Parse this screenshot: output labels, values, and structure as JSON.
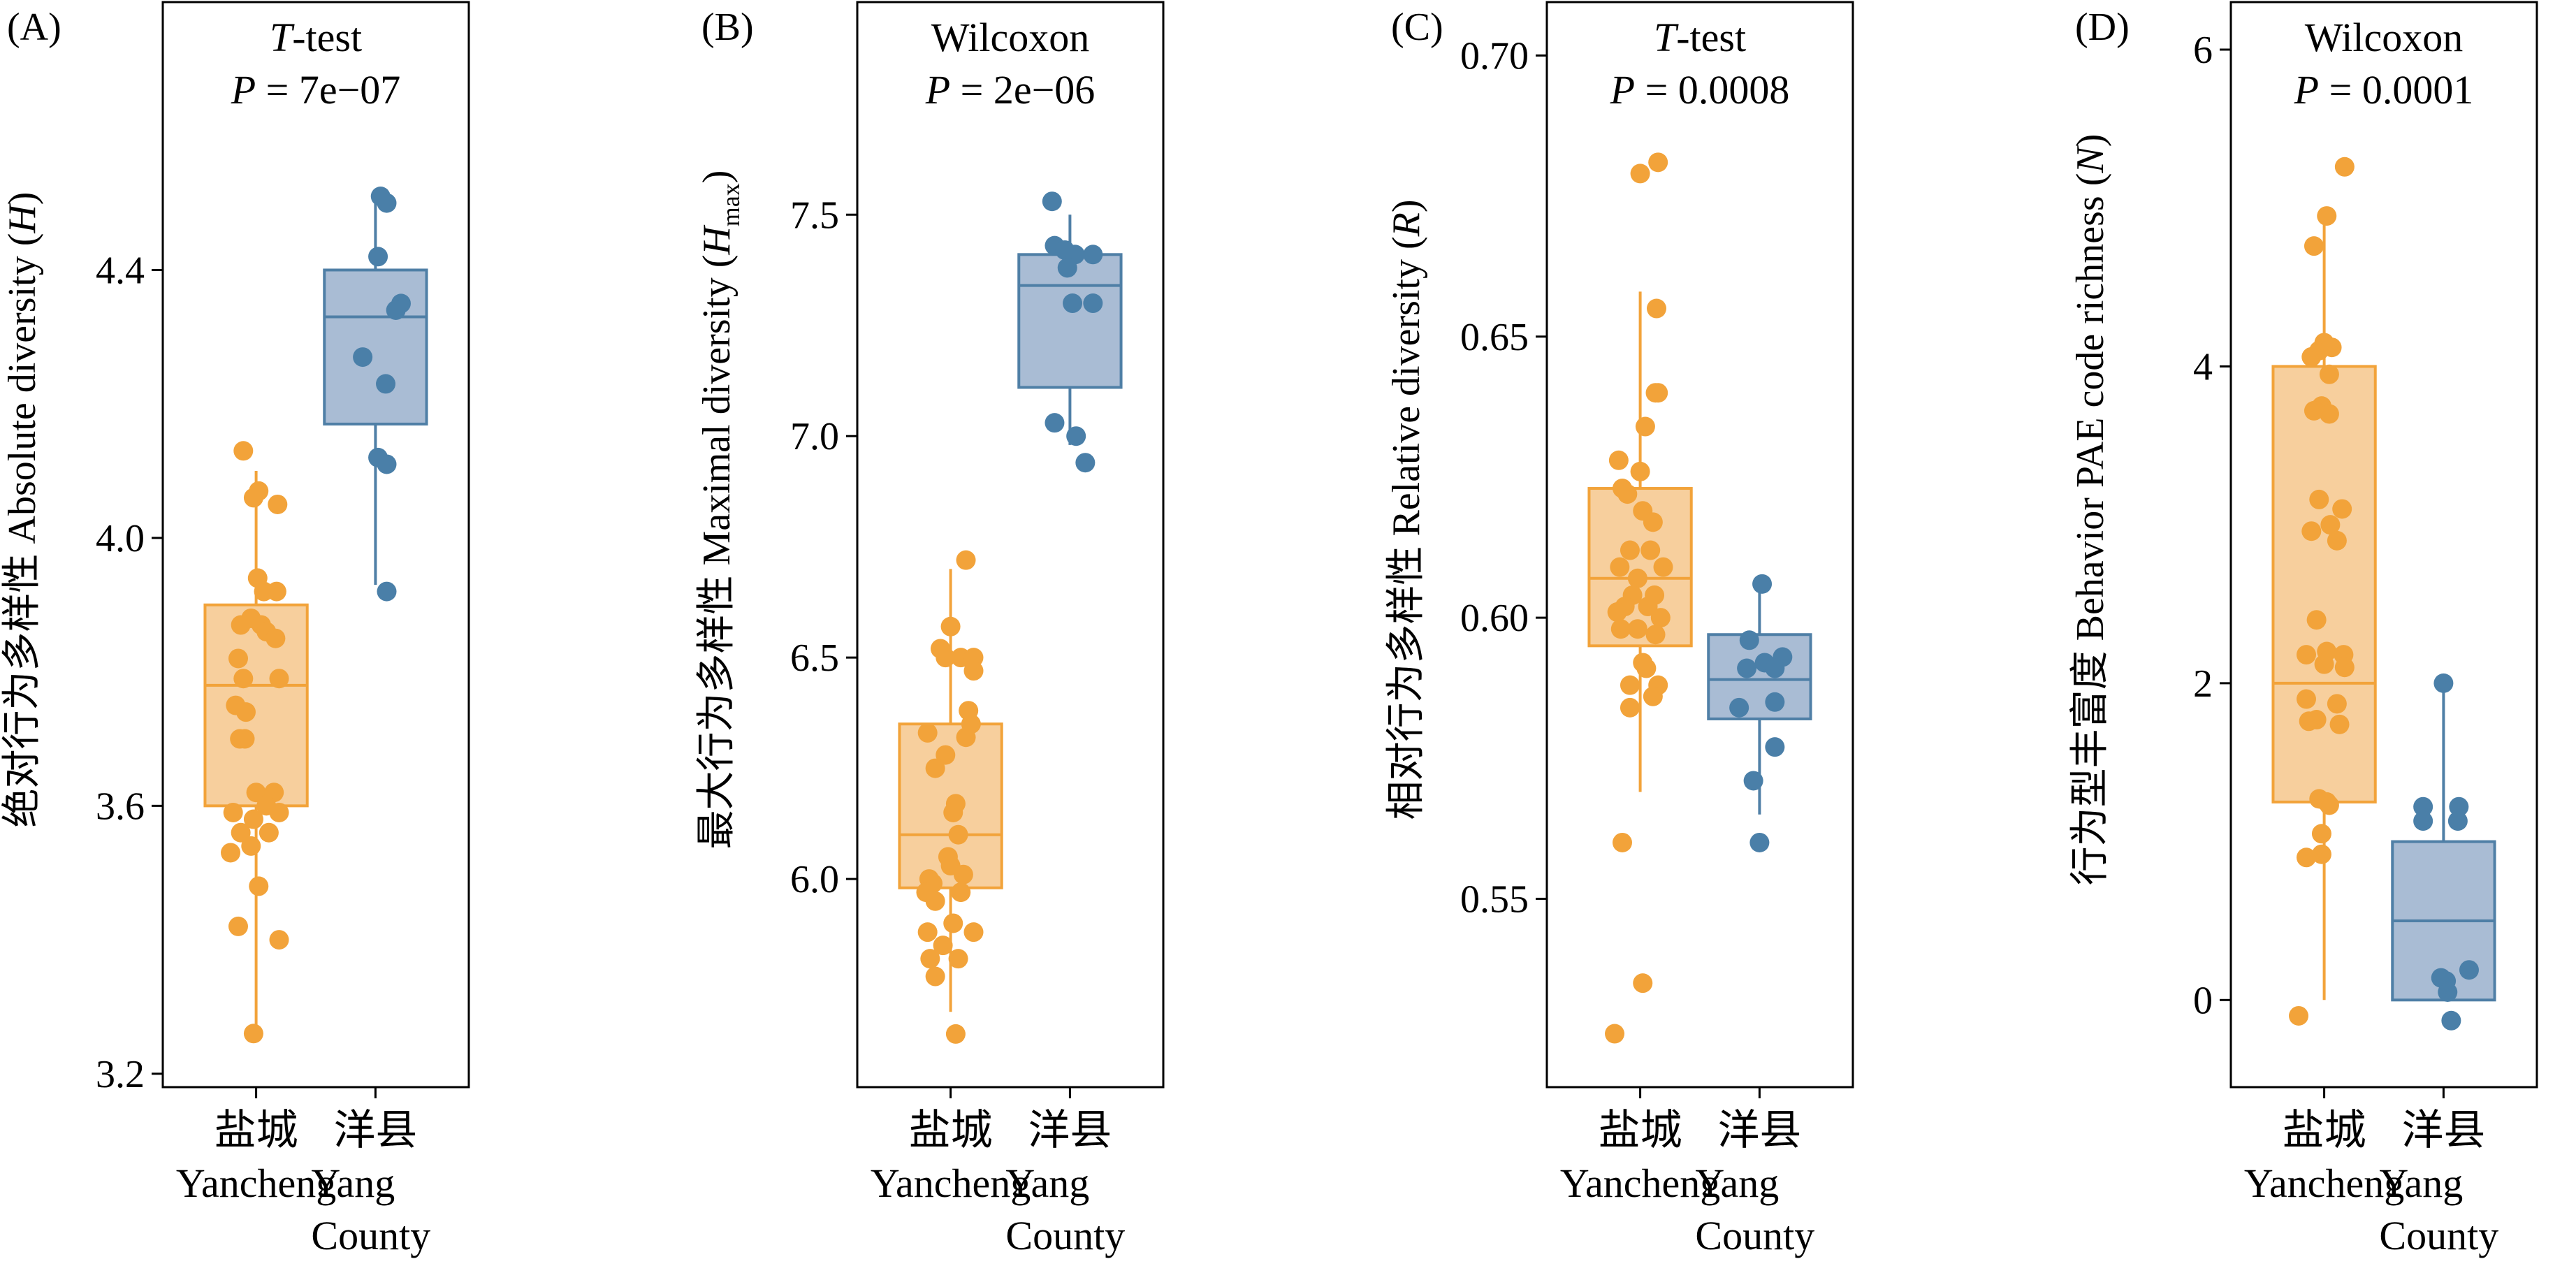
{
  "colors": {
    "yancheng_fill": "#f7cf9d",
    "yancheng_edge": "#f2a33a",
    "yancheng_point": "#f2a33a",
    "yang_fill": "#a9bcd4",
    "yang_edge": "#4f7fa6",
    "yang_point": "#4a7fa8"
  },
  "chart_data": [
    {
      "type": "box",
      "panel_label": "(A)",
      "test_name": "T-test",
      "p_text": "P = 7e−07",
      "ylabel": "绝对行为多样性 Absolute diversity (H)",
      "ylabel_parts": [
        "绝对行为多样性 Absolute diversity (",
        "H",
        ")"
      ],
      "ylabel_style": "italic",
      "ylim": [
        3.18,
        4.8
      ],
      "yticks": [
        3.2,
        3.6,
        4.0,
        4.4
      ],
      "ytick_labels": [
        "3.2",
        "3.6",
        "4.0",
        "4.4"
      ],
      "categories": [
        {
          "cn": "盐城",
          "en": [
            "Yancheng"
          ]
        },
        {
          "cn": "洋县",
          "en": [
            "Yang",
            "County"
          ]
        }
      ],
      "groups": [
        {
          "box": {
            "q1": 3.6,
            "median": 3.78,
            "q3": 3.9,
            "whisker_low": 3.26,
            "whisker_high": 4.1
          },
          "points": [
            {
              "j": -0.25,
              "y": 4.13
            },
            {
              "j": 0.05,
              "y": 4.07
            },
            {
              "j": -0.05,
              "y": 4.06
            },
            {
              "j": 0.42,
              "y": 4.05
            },
            {
              "j": 0.03,
              "y": 3.94
            },
            {
              "j": 0.15,
              "y": 3.92
            },
            {
              "j": 0.4,
              "y": 3.92
            },
            {
              "j": -0.1,
              "y": 3.88
            },
            {
              "j": -0.3,
              "y": 3.87
            },
            {
              "j": 0.1,
              "y": 3.87
            },
            {
              "j": 0.2,
              "y": 3.86
            },
            {
              "j": 0.38,
              "y": 3.85
            },
            {
              "j": -0.35,
              "y": 3.82
            },
            {
              "j": -0.25,
              "y": 3.79
            },
            {
              "j": 0.45,
              "y": 3.79
            },
            {
              "j": -0.4,
              "y": 3.75
            },
            {
              "j": -0.2,
              "y": 3.74
            },
            {
              "j": -0.32,
              "y": 3.7
            },
            {
              "j": -0.22,
              "y": 3.7
            },
            {
              "j": 0.0,
              "y": 3.62
            },
            {
              "j": 0.35,
              "y": 3.62
            },
            {
              "j": 0.2,
              "y": 3.6
            },
            {
              "j": -0.45,
              "y": 3.59
            },
            {
              "j": 0.45,
              "y": 3.59
            },
            {
              "j": -0.05,
              "y": 3.58
            },
            {
              "j": 0.25,
              "y": 3.56
            },
            {
              "j": -0.3,
              "y": 3.56
            },
            {
              "j": -0.5,
              "y": 3.53
            },
            {
              "j": -0.1,
              "y": 3.54
            },
            {
              "j": 0.05,
              "y": 3.48
            },
            {
              "j": -0.35,
              "y": 3.42
            },
            {
              "j": 0.45,
              "y": 3.4
            },
            {
              "j": -0.05,
              "y": 3.26
            }
          ]
        },
        {
          "box": {
            "q1": 4.17,
            "median": 4.33,
            "q3": 4.4,
            "whisker_low": 3.93,
            "whisker_high": 4.5
          },
          "points": [
            {
              "j": 0.1,
              "y": 4.51
            },
            {
              "j": 0.22,
              "y": 4.5
            },
            {
              "j": 0.05,
              "y": 4.42
            },
            {
              "j": 0.5,
              "y": 4.35
            },
            {
              "j": 0.4,
              "y": 4.34
            },
            {
              "j": -0.25,
              "y": 4.27
            },
            {
              "j": 0.2,
              "y": 4.23
            },
            {
              "j": 0.05,
              "y": 4.12
            },
            {
              "j": 0.22,
              "y": 4.11
            },
            {
              "j": 0.22,
              "y": 3.92
            }
          ]
        }
      ]
    },
    {
      "type": "box",
      "panel_label": "(B)",
      "test_name": "Wilcoxon",
      "p_text": "P = 2e−06",
      "ylabel": "最大行为多样性 Maximal diversity (Hmax)",
      "ylabel_parts": [
        "最大行为多样性 Maximal diversity (",
        "H",
        ")"
      ],
      "ylabel_sub": "max",
      "ylabel_style": "italic",
      "ylim": [
        5.53,
        7.98
      ],
      "yticks": [
        6.0,
        6.5,
        7.0,
        7.5
      ],
      "ytick_labels": [
        "6.0",
        "6.5",
        "7.0",
        "7.5"
      ],
      "categories": [
        {
          "cn": "盐城",
          "en": [
            "Yancheng"
          ]
        },
        {
          "cn": "洋县",
          "en": [
            "Yang",
            "County"
          ]
        }
      ],
      "groups": [
        {
          "box": {
            "q1": 5.98,
            "median": 6.1,
            "q3": 6.35,
            "whisker_low": 5.7,
            "whisker_high": 6.7
          },
          "points": [
            {
              "j": 0.3,
              "y": 6.72
            },
            {
              "j": 0.0,
              "y": 6.57
            },
            {
              "j": -0.2,
              "y": 6.52
            },
            {
              "j": 0.2,
              "y": 6.5
            },
            {
              "j": -0.1,
              "y": 6.5
            },
            {
              "j": 0.45,
              "y": 6.5
            },
            {
              "j": 0.45,
              "y": 6.47
            },
            {
              "j": 0.35,
              "y": 6.38
            },
            {
              "j": 0.4,
              "y": 6.35
            },
            {
              "j": -0.45,
              "y": 6.33
            },
            {
              "j": 0.3,
              "y": 6.32
            },
            {
              "j": -0.1,
              "y": 6.28
            },
            {
              "j": -0.3,
              "y": 6.25
            },
            {
              "j": 0.1,
              "y": 6.17
            },
            {
              "j": 0.05,
              "y": 6.15
            },
            {
              "j": 0.15,
              "y": 6.1
            },
            {
              "j": -0.05,
              "y": 6.05
            },
            {
              "j": 0.0,
              "y": 6.03
            },
            {
              "j": 0.25,
              "y": 6.01
            },
            {
              "j": -0.42,
              "y": 6.0
            },
            {
              "j": -0.35,
              "y": 5.99
            },
            {
              "j": -0.48,
              "y": 5.97
            },
            {
              "j": 0.2,
              "y": 5.97
            },
            {
              "j": -0.3,
              "y": 5.95
            },
            {
              "j": 0.05,
              "y": 5.9
            },
            {
              "j": -0.45,
              "y": 5.88
            },
            {
              "j": 0.45,
              "y": 5.88
            },
            {
              "j": -0.15,
              "y": 5.85
            },
            {
              "j": -0.4,
              "y": 5.82
            },
            {
              "j": 0.15,
              "y": 5.82
            },
            {
              "j": -0.3,
              "y": 5.78
            },
            {
              "j": 0.1,
              "y": 5.65
            }
          ]
        },
        {
          "box": {
            "q1": 7.11,
            "median": 7.34,
            "q3": 7.41,
            "whisker_low": 6.98,
            "whisker_high": 7.5
          },
          "points": [
            {
              "j": -0.35,
              "y": 7.53
            },
            {
              "j": -0.3,
              "y": 7.43
            },
            {
              "j": -0.1,
              "y": 7.42
            },
            {
              "j": 0.1,
              "y": 7.41
            },
            {
              "j": 0.45,
              "y": 7.41
            },
            {
              "j": -0.05,
              "y": 7.38
            },
            {
              "j": 0.05,
              "y": 7.3
            },
            {
              "j": 0.45,
              "y": 7.3
            },
            {
              "j": -0.3,
              "y": 7.03
            },
            {
              "j": 0.12,
              "y": 7.0
            },
            {
              "j": 0.3,
              "y": 6.94
            }
          ]
        }
      ]
    },
    {
      "type": "box",
      "panel_label": "(C)",
      "test_name": "T-test",
      "p_text": "P = 0.0008",
      "ylabel": "相对行为多样性 Relative diversity (R)",
      "ylabel_parts": [
        "相对行为多样性 Relative diversity (",
        "R",
        ")"
      ],
      "ylabel_style": "italic",
      "ylim": [
        0.5165,
        0.7095
      ],
      "yticks": [
        0.55,
        0.6,
        0.65,
        0.7
      ],
      "ytick_labels": [
        "0.55",
        "0.60",
        "0.65",
        "0.70"
      ],
      "categories": [
        {
          "cn": "盐城",
          "en": [
            "Yancheng"
          ]
        },
        {
          "cn": "洋县",
          "en": [
            "Yang",
            "County"
          ]
        }
      ],
      "groups": [
        {
          "box": {
            "q1": 0.595,
            "median": 0.607,
            "q3": 0.623,
            "whisker_low": 0.569,
            "whisker_high": 0.658
          },
          "points": [
            {
              "j": 0.35,
              "y": 0.681
            },
            {
              "j": 0.0,
              "y": 0.679
            },
            {
              "j": 0.32,
              "y": 0.655
            },
            {
              "j": 0.3,
              "y": 0.64
            },
            {
              "j": 0.35,
              "y": 0.64
            },
            {
              "j": 0.1,
              "y": 0.634
            },
            {
              "j": -0.42,
              "y": 0.628
            },
            {
              "j": 0.0,
              "y": 0.626
            },
            {
              "j": -0.35,
              "y": 0.623
            },
            {
              "j": -0.25,
              "y": 0.622
            },
            {
              "j": 0.05,
              "y": 0.619
            },
            {
              "j": 0.25,
              "y": 0.617
            },
            {
              "j": -0.2,
              "y": 0.612
            },
            {
              "j": 0.2,
              "y": 0.612
            },
            {
              "j": -0.4,
              "y": 0.609
            },
            {
              "j": 0.45,
              "y": 0.609
            },
            {
              "j": -0.05,
              "y": 0.607
            },
            {
              "j": -0.15,
              "y": 0.604
            },
            {
              "j": 0.28,
              "y": 0.604
            },
            {
              "j": -0.3,
              "y": 0.602
            },
            {
              "j": 0.15,
              "y": 0.602
            },
            {
              "j": -0.45,
              "y": 0.601
            },
            {
              "j": 0.4,
              "y": 0.6
            },
            {
              "j": -0.38,
              "y": 0.598
            },
            {
              "j": -0.05,
              "y": 0.598
            },
            {
              "j": 0.3,
              "y": 0.597
            },
            {
              "j": 0.05,
              "y": 0.592
            },
            {
              "j": 0.12,
              "y": 0.591
            },
            {
              "j": -0.2,
              "y": 0.588
            },
            {
              "j": 0.35,
              "y": 0.588
            },
            {
              "j": 0.25,
              "y": 0.586
            },
            {
              "j": -0.2,
              "y": 0.584
            },
            {
              "j": -0.35,
              "y": 0.56
            },
            {
              "j": 0.05,
              "y": 0.535
            },
            {
              "j": -0.5,
              "y": 0.526
            }
          ]
        },
        {
          "box": {
            "q1": 0.582,
            "median": 0.589,
            "q3": 0.597,
            "whisker_low": 0.565,
            "whisker_high": 0.607
          },
          "points": [
            {
              "j": 0.05,
              "y": 0.606
            },
            {
              "j": -0.2,
              "y": 0.596
            },
            {
              "j": 0.1,
              "y": 0.592
            },
            {
              "j": 0.45,
              "y": 0.593
            },
            {
              "j": -0.25,
              "y": 0.591
            },
            {
              "j": 0.3,
              "y": 0.591
            },
            {
              "j": -0.4,
              "y": 0.584
            },
            {
              "j": 0.3,
              "y": 0.585
            },
            {
              "j": 0.3,
              "y": 0.577
            },
            {
              "j": -0.12,
              "y": 0.571
            },
            {
              "j": 0.0,
              "y": 0.56
            }
          ]
        }
      ]
    },
    {
      "type": "box",
      "panel_label": "(D)",
      "test_name": "Wilcoxon",
      "p_text": "P = 0.0001",
      "ylabel": "行为型丰富度 Behavior PAE code richness (N)",
      "ylabel_parts": [
        "行为型丰富度 Behavior PAE code richness (",
        "N",
        ")"
      ],
      "ylabel_style": "italic",
      "ylim": [
        -0.55,
        6.3
      ],
      "yticks": [
        0,
        2,
        4,
        6
      ],
      "ytick_labels": [
        "0",
        "2",
        "4",
        "6"
      ],
      "categories": [
        {
          "cn": "盐城",
          "en": [
            "Yancheng"
          ]
        },
        {
          "cn": "洋县",
          "en": [
            "Yang",
            "County"
          ]
        }
      ],
      "groups": [
        {
          "box": {
            "q1": 1.25,
            "median": 2.0,
            "q3": 4.0,
            "whisker_low": 0.0,
            "whisker_high": 5.0
          },
          "points": [
            {
              "j": 0.4,
              "y": 5.26
            },
            {
              "j": 0.05,
              "y": 4.95
            },
            {
              "j": -0.2,
              "y": 4.76
            },
            {
              "j": 0.0,
              "y": 4.15
            },
            {
              "j": 0.15,
              "y": 4.12
            },
            {
              "j": -0.25,
              "y": 4.06
            },
            {
              "j": -0.1,
              "y": 4.1
            },
            {
              "j": 0.1,
              "y": 3.95
            },
            {
              "j": -0.05,
              "y": 3.75
            },
            {
              "j": -0.2,
              "y": 3.72
            },
            {
              "j": 0.1,
              "y": 3.7
            },
            {
              "j": -0.1,
              "y": 3.16
            },
            {
              "j": 0.35,
              "y": 3.1
            },
            {
              "j": 0.12,
              "y": 3.0
            },
            {
              "j": -0.25,
              "y": 2.96
            },
            {
              "j": 0.25,
              "y": 2.9
            },
            {
              "j": -0.15,
              "y": 2.4
            },
            {
              "j": 0.05,
              "y": 2.2
            },
            {
              "j": -0.35,
              "y": 2.18
            },
            {
              "j": 0.38,
              "y": 2.18
            },
            {
              "j": 0.0,
              "y": 2.12
            },
            {
              "j": 0.4,
              "y": 2.1
            },
            {
              "j": -0.35,
              "y": 1.9
            },
            {
              "j": 0.25,
              "y": 1.87
            },
            {
              "j": -0.15,
              "y": 1.77
            },
            {
              "j": -0.3,
              "y": 1.76
            },
            {
              "j": 0.3,
              "y": 1.74
            },
            {
              "j": -0.1,
              "y": 1.27
            },
            {
              "j": 0.05,
              "y": 1.25
            },
            {
              "j": 0.1,
              "y": 1.23
            },
            {
              "j": -0.05,
              "y": 1.05
            },
            {
              "j": -0.35,
              "y": 0.9
            },
            {
              "j": -0.05,
              "y": 0.92
            },
            {
              "j": -0.5,
              "y": -0.1
            }
          ]
        },
        {
          "box": {
            "q1": 0.0,
            "median": 0.5,
            "q3": 1.0,
            "whisker_low": 0.0,
            "whisker_high": 2.0
          },
          "points": [
            {
              "j": 0.0,
              "y": 2.0
            },
            {
              "j": -0.4,
              "y": 1.22
            },
            {
              "j": 0.3,
              "y": 1.22
            },
            {
              "j": -0.4,
              "y": 1.13
            },
            {
              "j": 0.28,
              "y": 1.13
            },
            {
              "j": 0.5,
              "y": 0.19
            },
            {
              "j": -0.05,
              "y": 0.14
            },
            {
              "j": 0.05,
              "y": 0.12
            },
            {
              "j": 0.08,
              "y": 0.05
            },
            {
              "j": 0.15,
              "y": -0.13
            }
          ]
        }
      ]
    }
  ]
}
